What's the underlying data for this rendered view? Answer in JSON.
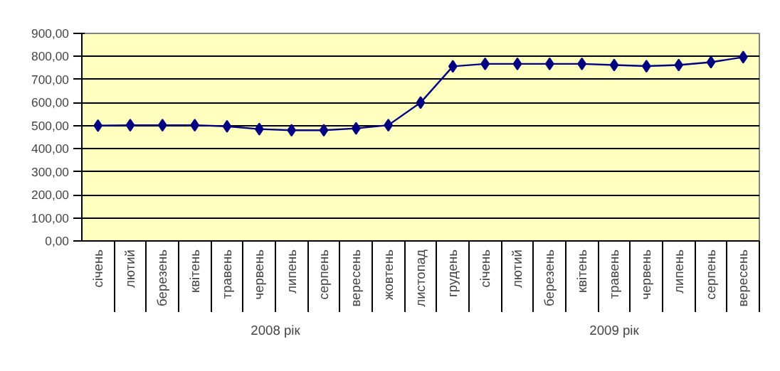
{
  "chart_data": {
    "type": "line",
    "categories": [
      "січень",
      "лютий",
      "березень",
      "квітень",
      "травень",
      "червень",
      "липень",
      "серпень",
      "вересень",
      "жовтень",
      "листопад",
      "грудень",
      "січень",
      "лютий",
      "березень",
      "квітень",
      "травень",
      "червень",
      "липень",
      "серпень",
      "вересень"
    ],
    "series": [
      {
        "color": "#000080",
        "values": [
          500,
          502,
          502,
          502,
          497,
          485,
          480,
          480,
          488,
          502,
          600,
          757,
          768,
          768,
          768,
          768,
          763,
          758,
          763,
          775,
          797
        ]
      }
    ],
    "annotations": [
      "2008 рік",
      "2009 рік"
    ],
    "ylim": [
      0,
      900
    ],
    "yticks": [
      {
        "value": 0,
        "label": "0,00"
      },
      {
        "value": 100,
        "label": "100,00"
      },
      {
        "value": 200,
        "label": "200,00"
      },
      {
        "value": 300,
        "label": "300,00"
      },
      {
        "value": 400,
        "label": "400,00"
      },
      {
        "value": 500,
        "label": "500,00"
      },
      {
        "value": 600,
        "label": "600,00"
      },
      {
        "value": 700,
        "label": "700,00"
      },
      {
        "value": 800,
        "label": "800,00"
      },
      {
        "value": 900,
        "label": "900,00"
      }
    ],
    "grid": "y",
    "marker": "diamond",
    "line_style": "solid"
  }
}
